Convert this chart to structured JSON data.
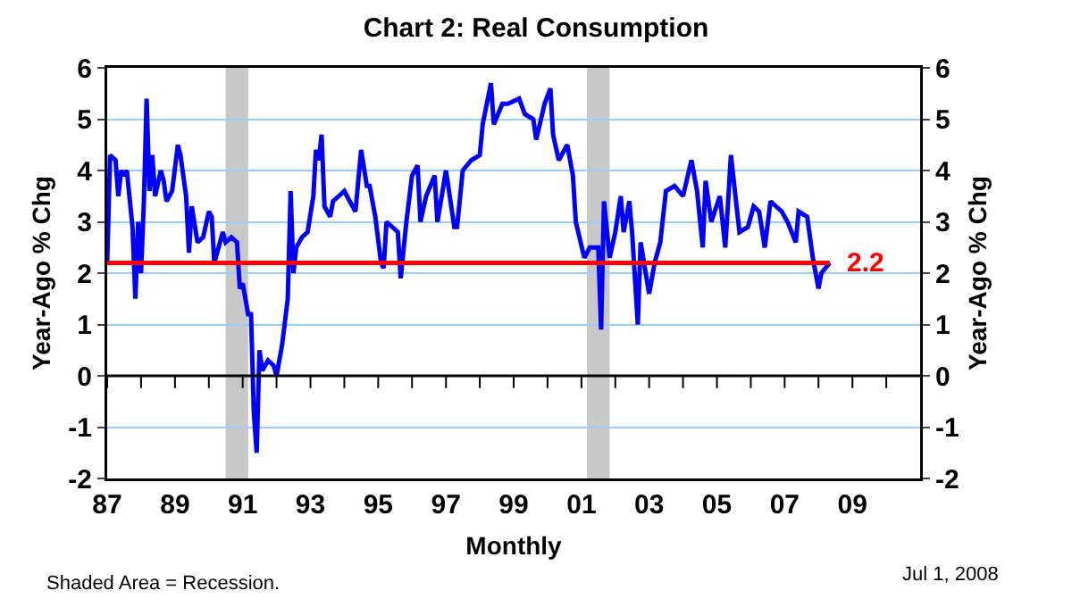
{
  "chart_data": {
    "type": "line",
    "title": "Chart 2: Real Consumption",
    "xlabel": "Monthly",
    "ylabel": "Year-Ago % Chg",
    "y2label": "Year-Ago % Chg",
    "annotations": [
      "Shaded Area = Recession.",
      "Jul 1, 2008"
    ],
    "x": [
      "1987-01",
      "1987-02",
      "1987-04",
      "1987-05",
      "1987-06",
      "1987-07",
      "1987-08",
      "1987-10",
      "1987-11",
      "1987-12",
      "1988-01",
      "1988-02",
      "1988-03",
      "1988-04",
      "1988-05",
      "1988-06",
      "1988-08",
      "1988-09",
      "1988-10",
      "1988-12",
      "1989-02",
      "1989-03",
      "1989-05",
      "1989-06",
      "1989-07",
      "1989-09",
      "1989-11",
      "1990-01",
      "1990-02",
      "1990-03",
      "1990-05",
      "1990-06",
      "1990-07",
      "1990-09",
      "1990-11",
      "1990-12",
      "1991-01",
      "1991-03",
      "1991-04",
      "1991-05",
      "1991-06",
      "1991-07",
      "1991-08",
      "1991-10",
      "1991-12",
      "1992-01",
      "1992-03",
      "1992-05",
      "1992-06",
      "1992-07",
      "1992-08",
      "1992-10",
      "1992-12",
      "1993-02",
      "1993-03",
      "1993-04",
      "1993-05",
      "1993-06",
      "1993-08",
      "1993-09",
      "1993-11",
      "1994-01",
      "1994-03",
      "1994-05",
      "1994-07",
      "1994-09",
      "1994-10",
      "1994-12",
      "1995-02",
      "1995-03",
      "1995-04",
      "1995-06",
      "1995-08",
      "1995-09",
      "1995-11",
      "1996-01",
      "1996-03",
      "1996-04",
      "1996-06",
      "1996-09",
      "1996-10",
      "1997-01",
      "1997-04",
      "1997-05",
      "1997-07",
      "1997-10",
      "1998-01",
      "1998-02",
      "1998-05",
      "1998-06",
      "1998-09",
      "1998-11",
      "1999-03",
      "1999-05",
      "1999-08",
      "1999-09",
      "1999-12",
      "2000-02",
      "2000-03",
      "2000-05",
      "2000-08",
      "2000-10",
      "2000-11",
      "2001-02",
      "2001-04",
      "2001-07",
      "2001-08",
      "2001-09",
      "2001-11",
      "2002-01",
      "2002-03",
      "2002-04",
      "2002-06",
      "2002-07",
      "2002-09",
      "2002-10",
      "2003-01",
      "2003-03",
      "2003-05",
      "2003-07",
      "2003-10",
      "2004-01",
      "2004-04",
      "2004-06",
      "2004-08",
      "2004-09",
      "2004-11",
      "2005-02",
      "2005-04",
      "2005-06",
      "2005-08",
      "2005-09",
      "2005-12",
      "2006-02",
      "2006-04",
      "2006-06",
      "2006-08",
      "2006-12",
      "2007-02",
      "2007-05",
      "2007-06",
      "2007-09",
      "2007-11",
      "2008-01",
      "2008-02",
      "2008-05"
    ],
    "series": [
      {
        "color": "#0000ff",
        "values": [
          2.2,
          4.3,
          4.2,
          3.5,
          4.0,
          3.9,
          4.0,
          2.9,
          1.5,
          3.0,
          2.0,
          3.4,
          5.4,
          3.6,
          4.3,
          3.5,
          4.0,
          3.8,
          3.4,
          3.6,
          4.5,
          4.3,
          3.5,
          2.4,
          3.3,
          2.6,
          2.7,
          3.2,
          3.1,
          2.2,
          2.6,
          2.8,
          2.6,
          2.7,
          2.6,
          1.7,
          1.8,
          1.2,
          1.2,
          -0.7,
          -1.5,
          0.5,
          0.1,
          0.3,
          0.2,
          0.0,
          0.6,
          1.5,
          3.6,
          2.0,
          2.5,
          2.7,
          2.8,
          3.5,
          4.4,
          4.2,
          4.7,
          3.3,
          3.1,
          3.4,
          3.5,
          3.6,
          3.4,
          3.2,
          4.4,
          3.7,
          3.7,
          3.1,
          2.2,
          2.1,
          3.0,
          2.9,
          2.8,
          1.9,
          3.0,
          3.9,
          4.1,
          3.0,
          3.5,
          3.9,
          3.0,
          4.0,
          2.9,
          2.9,
          4.0,
          4.2,
          4.3,
          4.9,
          5.7,
          4.9,
          5.3,
          5.3,
          5.4,
          5.1,
          5.0,
          4.6,
          5.3,
          5.6,
          4.7,
          4.2,
          4.5,
          3.9,
          3.0,
          2.3,
          2.5,
          2.5,
          0.9,
          3.4,
          2.3,
          2.8,
          3.5,
          2.8,
          3.4,
          2.8,
          1.0,
          2.6,
          1.6,
          2.2,
          2.6,
          3.6,
          3.7,
          3.5,
          4.2,
          3.6,
          2.5,
          3.8,
          3.0,
          3.5,
          2.5,
          4.3,
          3.3,
          2.8,
          2.9,
          3.3,
          3.2,
          2.5,
          3.4,
          3.2,
          3.0,
          2.6,
          3.2,
          3.1,
          2.3,
          1.7,
          2.0,
          2.2
        ]
      }
    ],
    "xlim": [
      "1987-01",
      "2011-01"
    ],
    "xticks": [
      {
        "value": "1987-01",
        "label": "87"
      },
      {
        "value": "1988-01",
        "label": null
      },
      {
        "value": "1989-01",
        "label": "89"
      },
      {
        "value": "1990-01",
        "label": null
      },
      {
        "value": "1991-01",
        "label": "91"
      },
      {
        "value": "1992-01",
        "label": null
      },
      {
        "value": "1993-01",
        "label": "93"
      },
      {
        "value": "1994-01",
        "label": null
      },
      {
        "value": "1995-01",
        "label": "95"
      },
      {
        "value": "1996-01",
        "label": null
      },
      {
        "value": "1997-01",
        "label": "97"
      },
      {
        "value": "1998-01",
        "label": null
      },
      {
        "value": "1999-01",
        "label": "99"
      },
      {
        "value": "2000-01",
        "label": null
      },
      {
        "value": "2001-01",
        "label": "01"
      },
      {
        "value": "2002-01",
        "label": null
      },
      {
        "value": "2003-01",
        "label": "03"
      },
      {
        "value": "2004-01",
        "label": null
      },
      {
        "value": "2005-01",
        "label": "05"
      },
      {
        "value": "2006-01",
        "label": null
      },
      {
        "value": "2007-01",
        "label": "07"
      },
      {
        "value": "2008-01",
        "label": null
      },
      {
        "value": "2009-01",
        "label": "09"
      },
      {
        "value": "2010-01",
        "label": null
      }
    ],
    "ylim": [
      -2,
      6
    ],
    "yticks": [
      -2,
      -1,
      0,
      1,
      2,
      3,
      4,
      5,
      6
    ],
    "y2lim": [
      -2,
      6
    ],
    "y2ticks": [
      -2,
      -1,
      0,
      1,
      2,
      3,
      4,
      5,
      6
    ],
    "ref_lines": [
      {
        "axis": "y",
        "value": 2.2,
        "label": "2.2",
        "color": "#ff0000"
      }
    ],
    "bands": [
      {
        "axis": "x",
        "from": "1990-07",
        "to": "1991-03",
        "color": "#c8c8c8"
      },
      {
        "axis": "x",
        "from": "2001-03",
        "to": "2001-11",
        "color": "#c8c8c8"
      }
    ],
    "grid": "y",
    "line_style": "solid"
  }
}
